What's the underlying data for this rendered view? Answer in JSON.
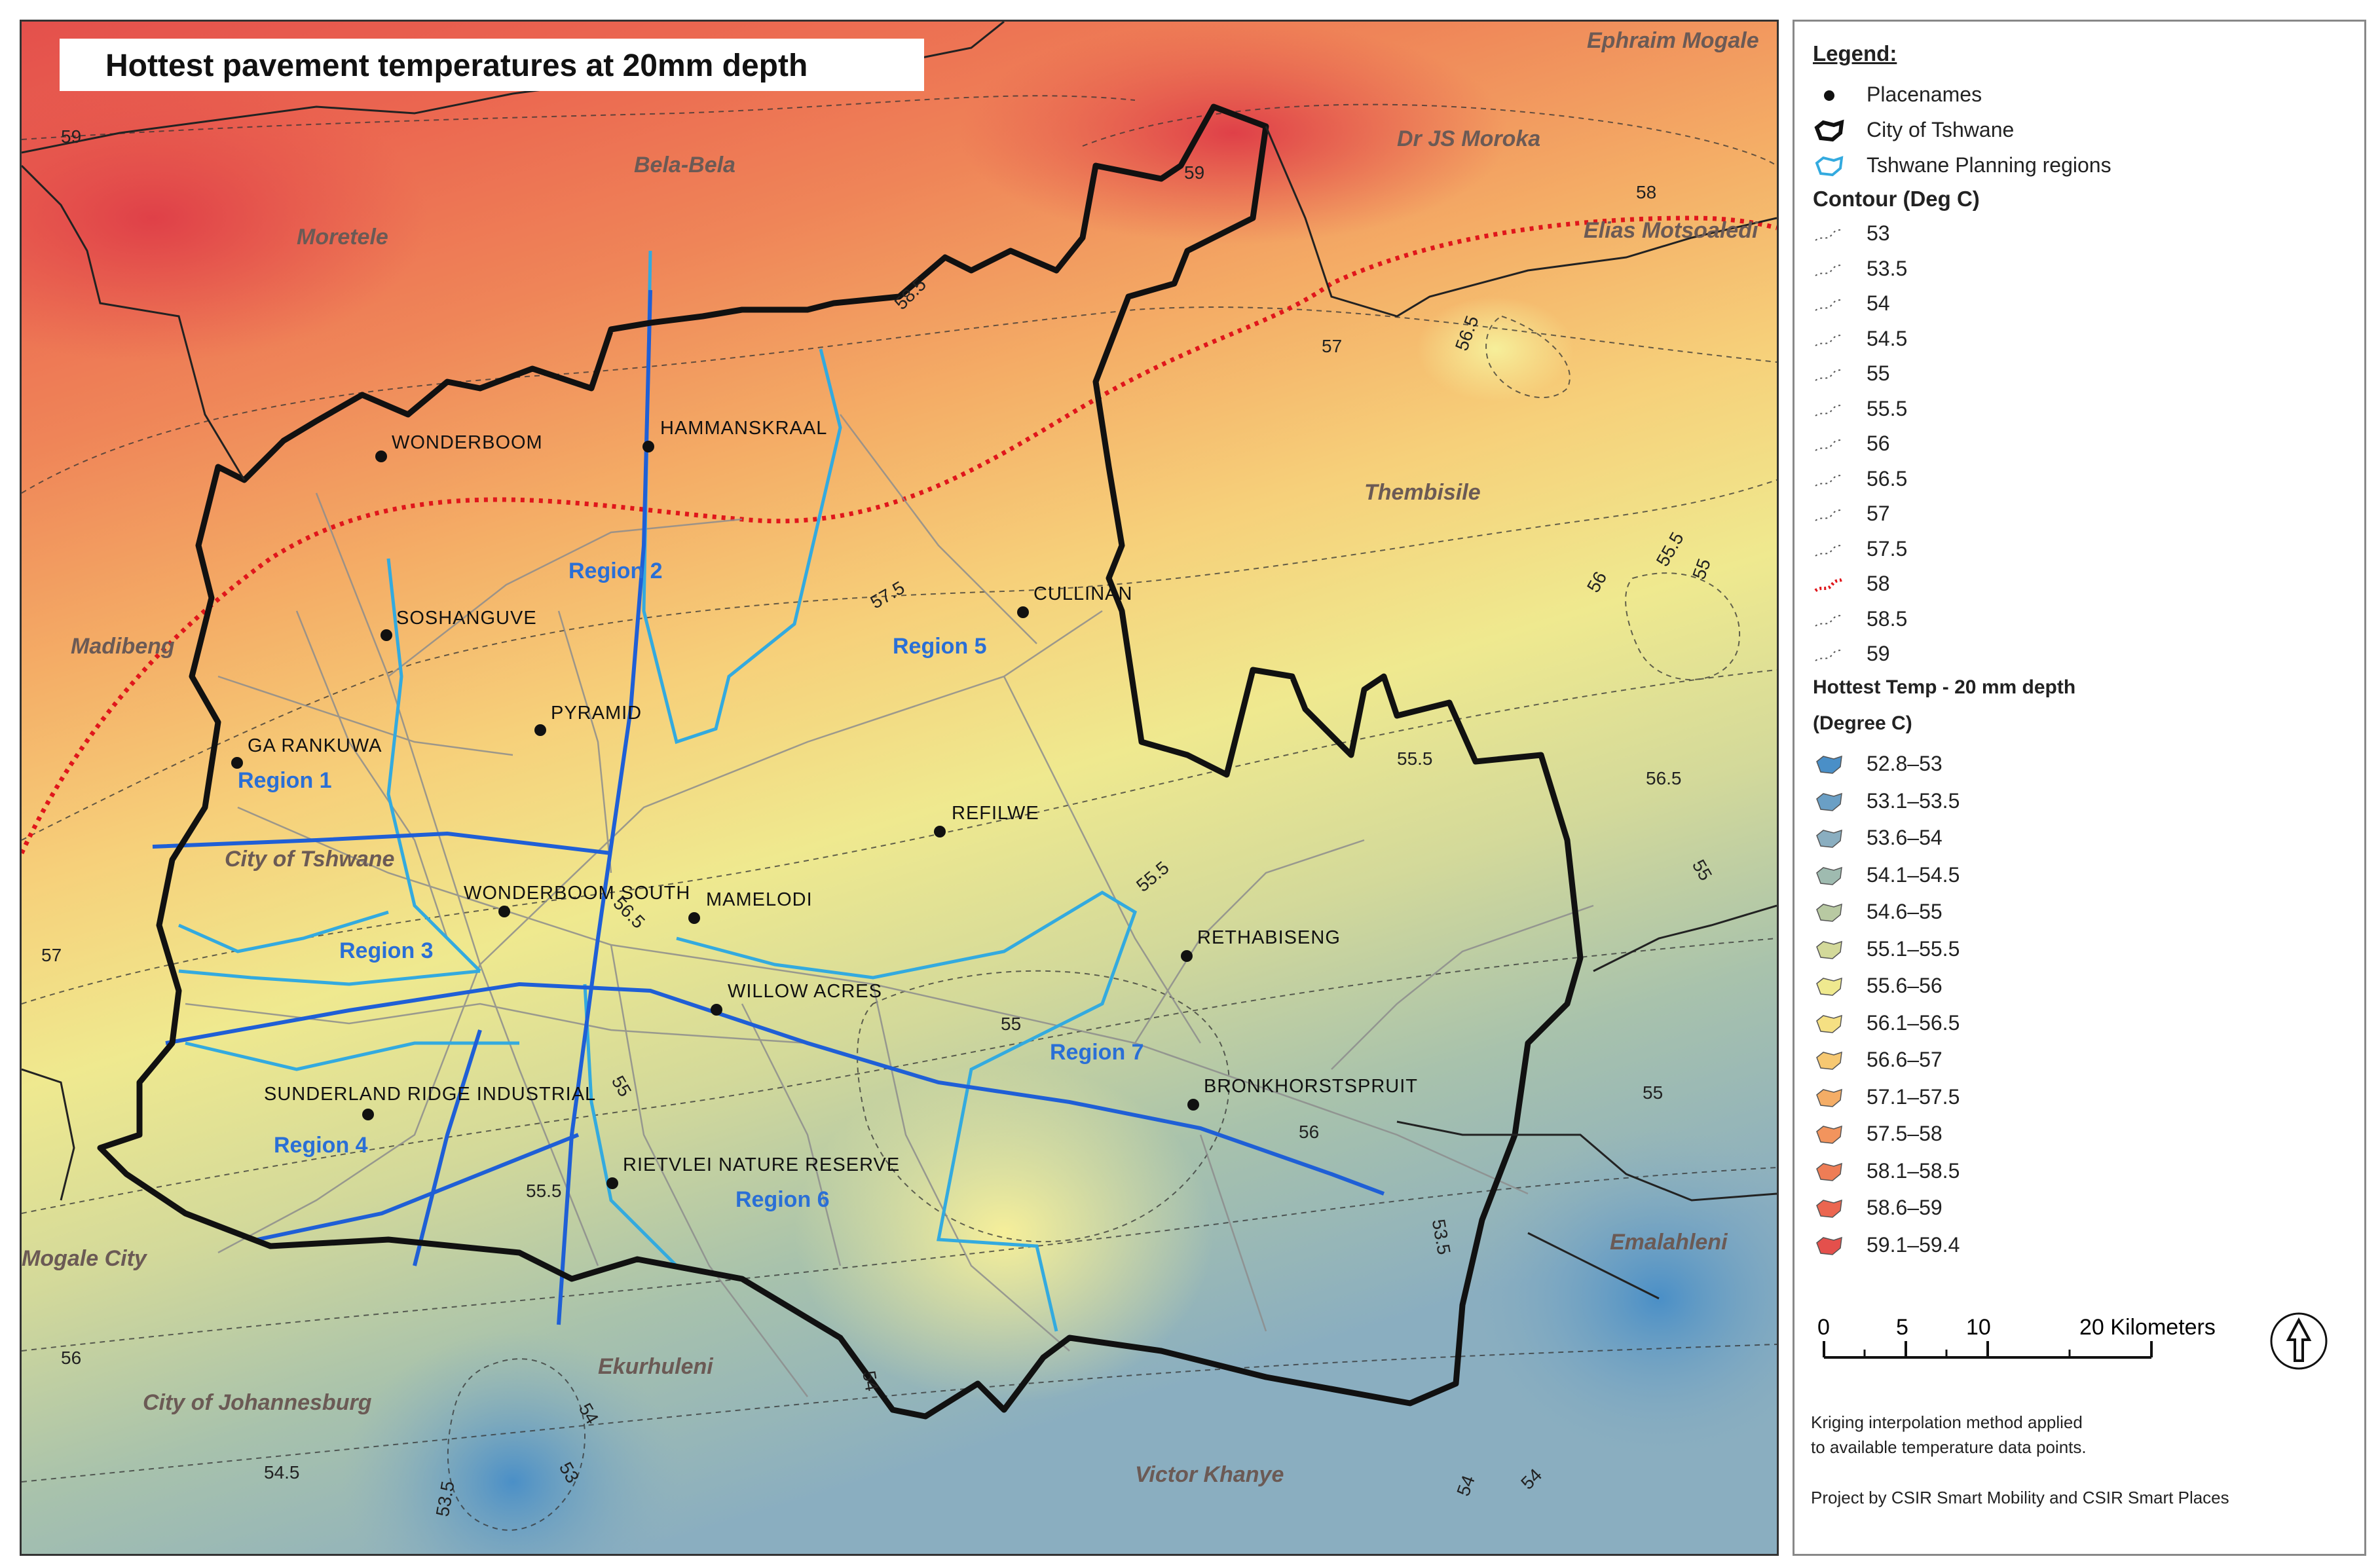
{
  "title": "Hottest pavement temperatures at 20mm depth",
  "municipalities": [
    "Ephraim Mogale",
    "Bela-Bela",
    "Dr JS Moroka",
    "Moretele",
    "Elias Motsoaledi",
    "Thembisile",
    "Madibeng",
    "City of Tshwane",
    "Mogale City",
    "City of Johannesburg",
    "Ekurhuleni",
    "Emalahleni",
    "Victor Khanye"
  ],
  "regions": [
    "Region 1",
    "Region 2",
    "Region 3",
    "Region 4",
    "Region 5",
    "Region 6",
    "Region 7"
  ],
  "placenames": [
    "WONDERBOOM",
    "HAMMANSKRAAL",
    "SOSHANGUVE",
    "PYRAMID",
    "GA RANKUWA",
    "CULLINAN",
    "REFILWE",
    "WONDERBOOM SOUTH",
    "MAMELODI",
    "RETHABISENG",
    "WILLOW ACRES",
    "SUNDERLAND RIDGE INDUSTRIAL",
    "BRONKHORSTSPRUIT",
    "RIETVLEI NATURE RESERVE"
  ],
  "contour_labels": [
    "59",
    "59",
    "58",
    "58.5",
    "57",
    "56.5",
    "57.5",
    "55.5",
    "55",
    "56",
    "55.5",
    "56.5",
    "55",
    "57",
    "56.5",
    "55.5",
    "55",
    "55",
    "55",
    "56",
    "55.5",
    "56",
    "54",
    "53.5",
    "54.5",
    "53",
    "54",
    "54",
    "54",
    "53.5"
  ],
  "legend": {
    "heading": "Legend:",
    "items": [
      {
        "label": "Placenames",
        "icon": "dot"
      },
      {
        "label": "City of Tshwane",
        "icon": "black-boundary"
      },
      {
        "label": "Tshwane Planning regions",
        "icon": "blue-boundary"
      }
    ],
    "contour_heading": "Contour (Deg C)",
    "contours": [
      "53",
      "53.5",
      "54",
      "54.5",
      "55",
      "55.5",
      "56",
      "56.5",
      "57",
      "57.5",
      "58",
      "58.5",
      "59"
    ],
    "highlight_contour": "58",
    "highlight_color": "#e0161b",
    "temp_heading_1": "Hottest  Temp - 20 mm depth",
    "temp_heading_2": "(Degree C)",
    "classes": [
      {
        "label": "52.8–53",
        "color": "#4a8fc7"
      },
      {
        "label": "53.1–53.5",
        "color": "#6a9fc5"
      },
      {
        "label": "53.6–54",
        "color": "#8aaec0"
      },
      {
        "label": "54.1–54.5",
        "color": "#9fbbb0"
      },
      {
        "label": "54.6–55",
        "color": "#b8c9a2"
      },
      {
        "label": "55.1–55.5",
        "color": "#d3d99a"
      },
      {
        "label": "55.6–56",
        "color": "#efe98f"
      },
      {
        "label": "56.1–56.5",
        "color": "#f5e083"
      },
      {
        "label": "56.6–57",
        "color": "#f6c872"
      },
      {
        "label": "57.1–57.5",
        "color": "#f4ad66"
      },
      {
        "label": "57.5–58",
        "color": "#f2945d"
      },
      {
        "label": "58.1–58.5",
        "color": "#ee7d56"
      },
      {
        "label": "58.6–59",
        "color": "#eb6650"
      },
      {
        "label": "59.1–59.4",
        "color": "#e4504c"
      }
    ],
    "scale_ticks": [
      "0",
      "5",
      "10",
      "20 Kilometers"
    ],
    "note_1": "Kriging interpolation method applied",
    "note_2": "to available temperature data points.",
    "credit": "Project by CSIR Smart Mobility and CSIR Smart Places"
  }
}
